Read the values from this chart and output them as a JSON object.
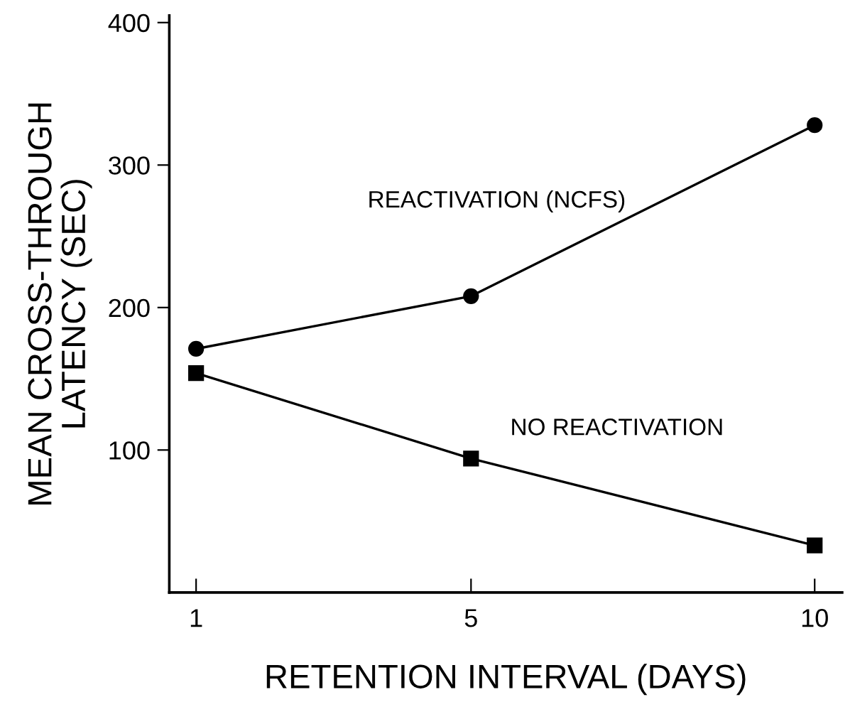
{
  "chart_data": {
    "type": "line",
    "xlabel": "RETENTION INTERVAL (DAYS)",
    "ylabel": "MEAN CROSS-THROUGH\nLATENCY (SEC)",
    "x": [
      1,
      5,
      10
    ],
    "series": [
      {
        "name": "REACTIVATION (NCFS)",
        "color": "#000000",
        "marker": "circle",
        "values": [
          171,
          208,
          328
        ]
      },
      {
        "name": "NO REACTIVATION",
        "color": "#000000",
        "marker": "square",
        "values": [
          154,
          94,
          33
        ]
      }
    ],
    "xlim": [
      0.61,
      10.4
    ],
    "ylim": [
      0,
      405
    ],
    "xticks": [
      1,
      5,
      10
    ],
    "yticks": [
      100,
      200,
      300,
      400
    ],
    "grid": false,
    "legend": false,
    "line_style": "solid"
  }
}
